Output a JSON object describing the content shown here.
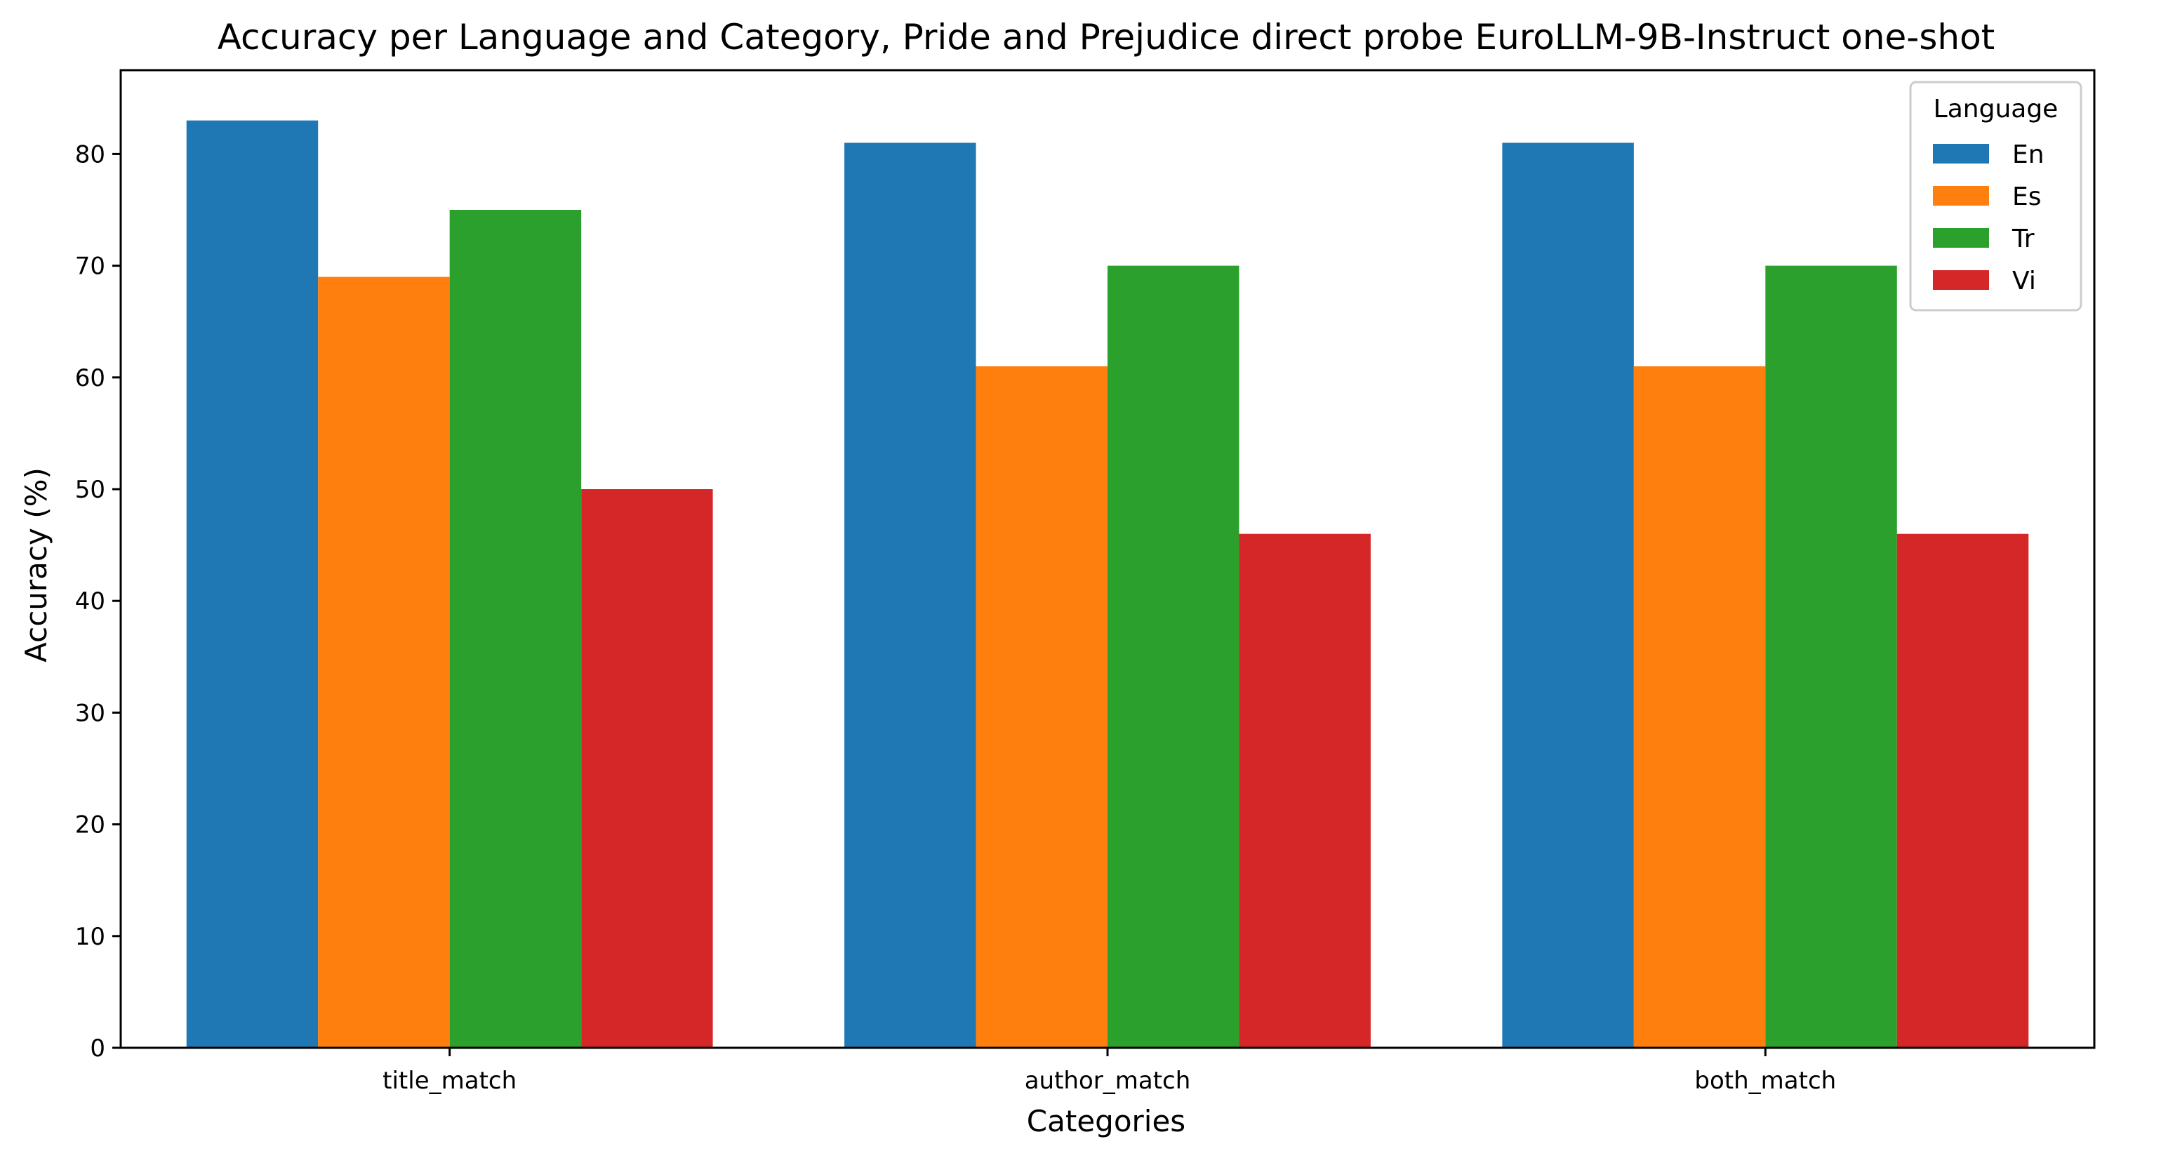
{
  "chart_data": {
    "type": "bar",
    "title": "Accuracy per Language and Category, Pride and Prejudice direct probe EuroLLM-9B-Instruct one-shot",
    "xlabel": "Categories",
    "ylabel": "Accuracy (%)",
    "categories": [
      "title_match",
      "author_match",
      "both_match"
    ],
    "ylim": [
      0,
      87.5
    ],
    "yticks": [
      0,
      10,
      20,
      30,
      40,
      50,
      60,
      70,
      80
    ],
    "grid": false,
    "legend": {
      "title": "Language",
      "placement": "top-right"
    },
    "series": [
      {
        "name": "En",
        "color": "#1f77b4",
        "values": [
          83,
          81,
          81
        ]
      },
      {
        "name": "Es",
        "color": "#ff7f0e",
        "values": [
          69,
          61,
          61
        ]
      },
      {
        "name": "Tr",
        "color": "#2ca02c",
        "values": [
          75,
          70,
          70
        ]
      },
      {
        "name": "Vi",
        "color": "#d62728",
        "values": [
          50,
          46,
          46
        ]
      }
    ]
  }
}
